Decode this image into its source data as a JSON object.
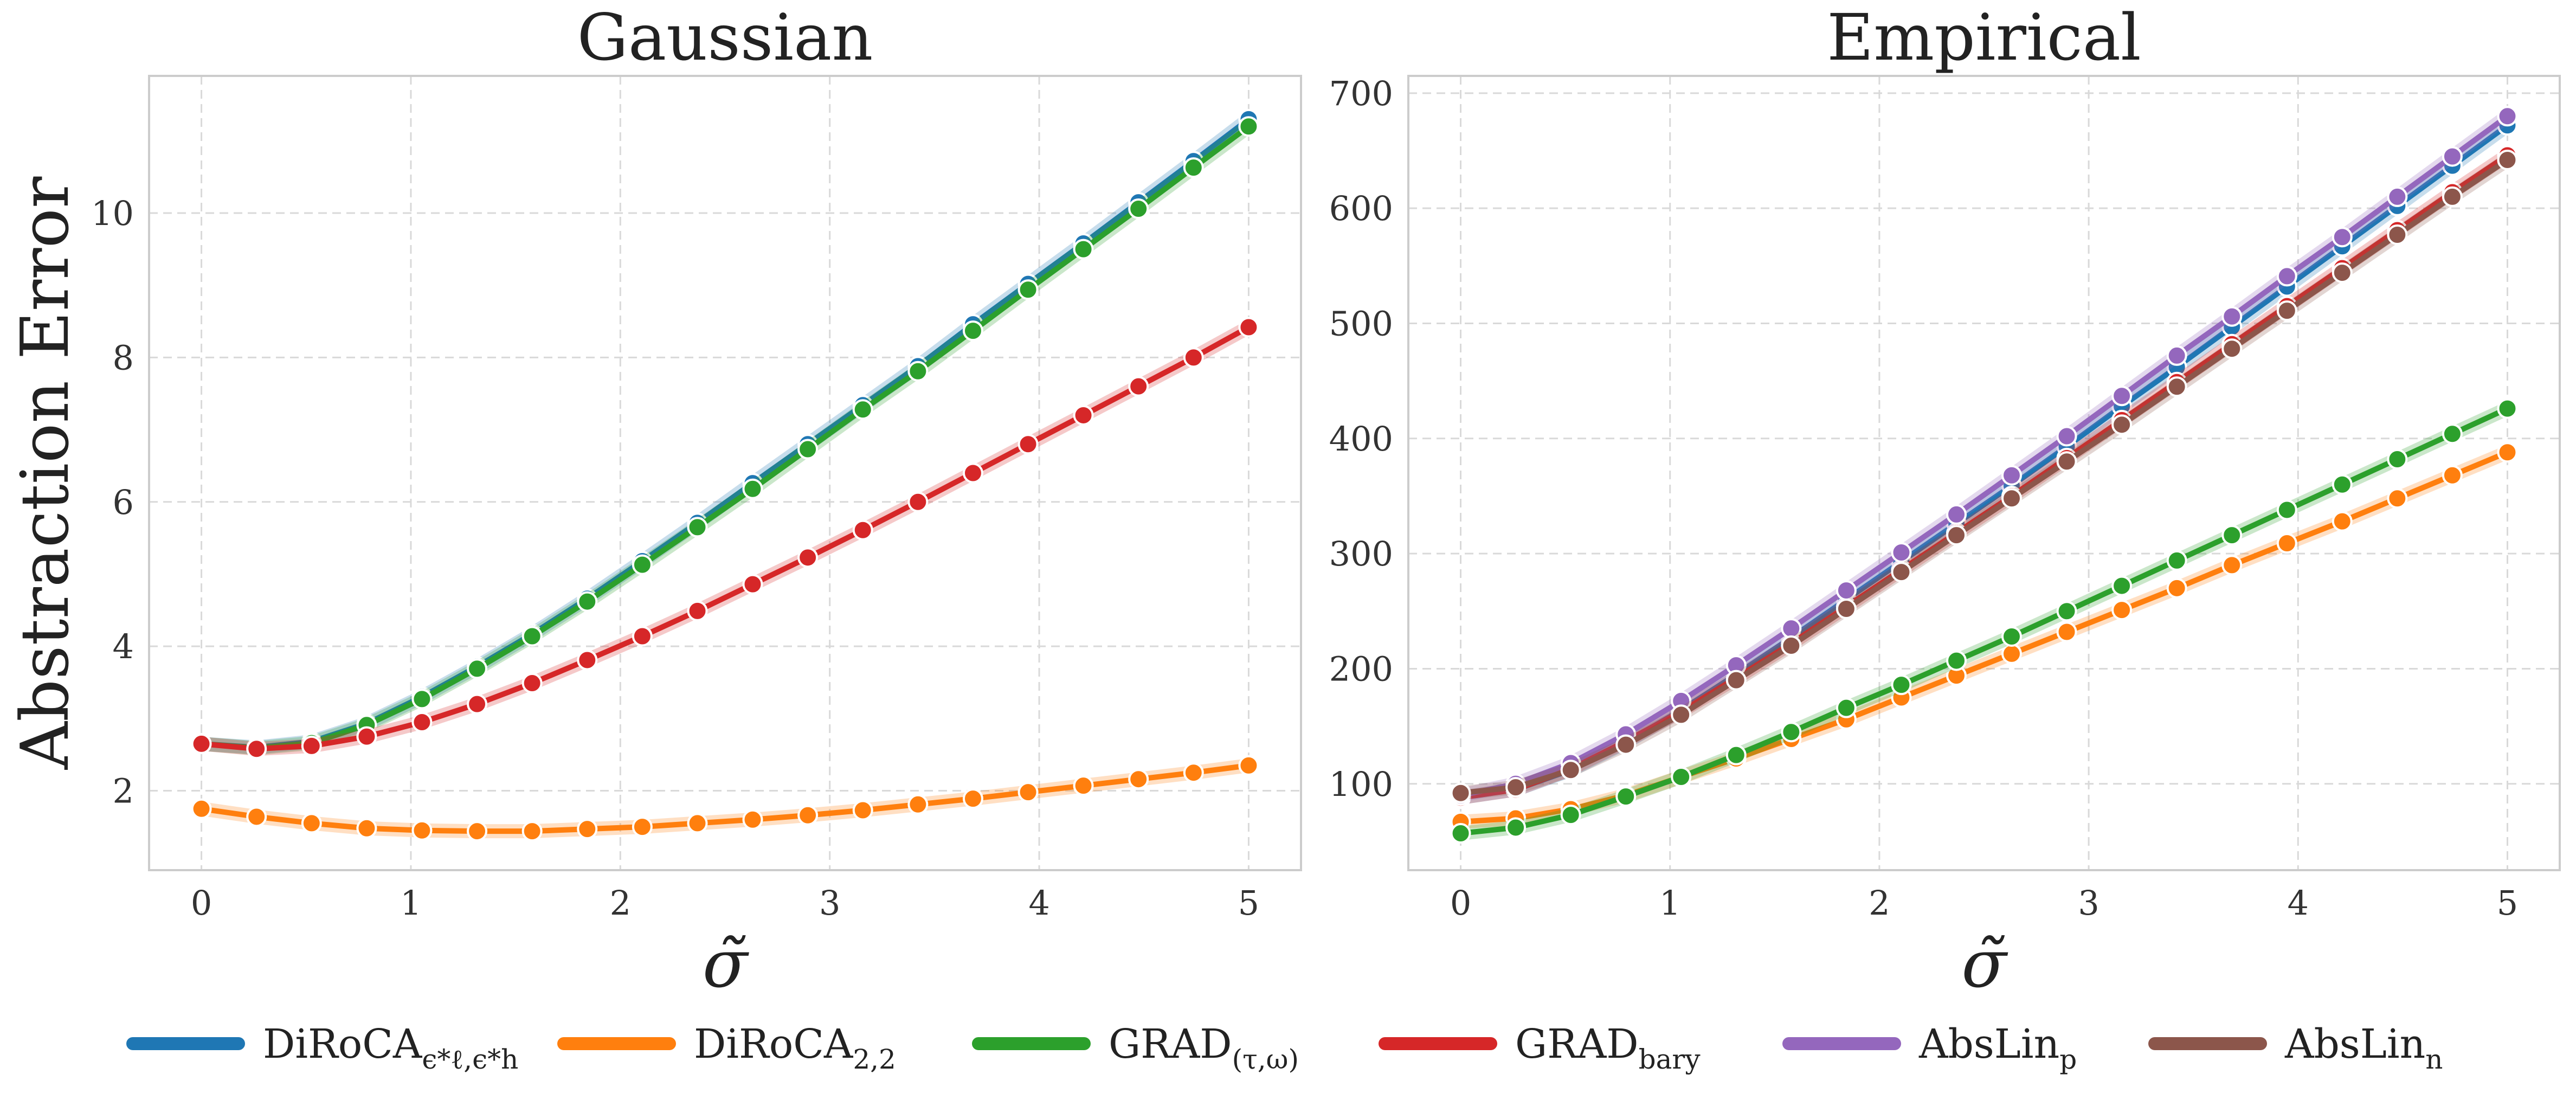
{
  "chart_data": [
    {
      "type": "line",
      "title": "Gaussian",
      "xlabel": "σ̃",
      "ylabel": "Abstraction Error",
      "xlim": [
        -0.25,
        5.25
      ],
      "ylim": [
        0.9,
        11.9
      ],
      "xticks": [
        0,
        1,
        2,
        3,
        4,
        5
      ],
      "yticks": [
        2,
        4,
        6,
        8,
        10
      ],
      "grid": true,
      "x": [
        0,
        0.263,
        0.526,
        0.789,
        1.053,
        1.316,
        1.579,
        1.842,
        2.105,
        2.368,
        2.632,
        2.895,
        3.158,
        3.421,
        3.684,
        3.947,
        4.211,
        4.474,
        4.737,
        5.0
      ],
      "series": [
        {
          "name": "DiRoCA_eps",
          "color": "#1f77b4",
          "values": [
            2.65,
            2.6,
            2.68,
            2.93,
            3.3,
            3.72,
            4.17,
            4.66,
            5.18,
            5.71,
            6.26,
            6.8,
            7.34,
            7.88,
            8.46,
            9.02,
            9.58,
            10.15,
            10.72,
            11.3
          ]
        },
        {
          "name": "DiRoCA_22",
          "color": "#ff7f0e",
          "values": [
            1.75,
            1.64,
            1.55,
            1.48,
            1.45,
            1.44,
            1.44,
            1.47,
            1.5,
            1.55,
            1.6,
            1.66,
            1.73,
            1.81,
            1.89,
            1.98,
            2.07,
            2.16,
            2.25,
            2.35
          ]
        },
        {
          "name": "GRAD_tau_omega",
          "color": "#2ca02c",
          "values": [
            2.65,
            2.59,
            2.66,
            2.91,
            3.27,
            3.69,
            4.14,
            4.62,
            5.13,
            5.65,
            6.18,
            6.73,
            7.28,
            7.81,
            8.37,
            8.94,
            9.5,
            10.06,
            10.63,
            11.2
          ]
        },
        {
          "name": "GRAD_bary",
          "color": "#d62728",
          "values": [
            2.65,
            2.58,
            2.62,
            2.75,
            2.95,
            3.2,
            3.49,
            3.81,
            4.14,
            4.49,
            4.86,
            5.23,
            5.61,
            6.0,
            6.4,
            6.8,
            7.2,
            7.6,
            8.0,
            8.42
          ]
        }
      ]
    },
    {
      "type": "line",
      "title": "Empirical",
      "xlabel": "σ̃",
      "ylabel": "",
      "xlim": [
        -0.25,
        5.25
      ],
      "ylim": [
        25,
        715
      ],
      "xticks": [
        0,
        1,
        2,
        3,
        4,
        5
      ],
      "yticks": [
        100,
        200,
        300,
        400,
        500,
        600,
        700
      ],
      "grid": true,
      "x": [
        0,
        0.263,
        0.526,
        0.789,
        1.053,
        1.316,
        1.579,
        1.842,
        2.105,
        2.368,
        2.632,
        2.895,
        3.158,
        3.421,
        3.684,
        3.947,
        4.211,
        4.474,
        4.737,
        5.0
      ],
      "series": [
        {
          "name": "DiRoCA_eps",
          "color": "#1f77b4",
          "values": [
            88,
            95,
            112,
            136,
            164,
            195,
            227,
            260,
            293,
            326,
            359,
            393,
            428,
            462,
            497,
            532,
            567,
            602,
            637,
            672
          ]
        },
        {
          "name": "DiRoCA_22",
          "color": "#ff7f0e",
          "values": [
            67,
            70,
            78,
            90,
            106,
            122,
            139,
            156,
            175,
            194,
            213,
            232,
            251,
            270,
            290,
            309,
            328,
            348,
            368,
            388
          ]
        },
        {
          "name": "GRAD_tau_omega",
          "color": "#2ca02c",
          "values": [
            57,
            62,
            73,
            89,
            106,
            125,
            145,
            166,
            186,
            207,
            228,
            250,
            272,
            294,
            316,
            338,
            360,
            382,
            404,
            426
          ]
        },
        {
          "name": "GRAD_bary",
          "color": "#d62728",
          "values": [
            88,
            95,
            113,
            137,
            163,
            192,
            222,
            254,
            286,
            318,
            350,
            383,
            416,
            449,
            482,
            515,
            548,
            581,
            614,
            646
          ]
        },
        {
          "name": "AbsLin_p",
          "color": "#9467bd",
          "values": [
            90,
            100,
            118,
            143,
            172,
            203,
            235,
            268,
            301,
            334,
            368,
            402,
            437,
            472,
            506,
            541,
            575,
            610,
            645,
            680
          ]
        },
        {
          "name": "AbsLin_n",
          "color": "#8c564b",
          "values": [
            92,
            97,
            112,
            134,
            160,
            190,
            220,
            252,
            284,
            316,
            348,
            380,
            412,
            445,
            478,
            511,
            544,
            577,
            610,
            642
          ]
        }
      ]
    }
  ],
  "legend": {
    "placement": "bottom",
    "items": [
      {
        "color": "#1f77b4",
        "label": "DiRoCA",
        "sub": "ϵ*ℓ,ϵ*h"
      },
      {
        "color": "#ff7f0e",
        "label": "DiRoCA",
        "sub": "2,2"
      },
      {
        "color": "#2ca02c",
        "label": "GRAD",
        "sub": "(τ,ω)"
      },
      {
        "color": "#d62728",
        "label": "GRAD",
        "sub": "bary"
      },
      {
        "color": "#9467bd",
        "label": "AbsLin",
        "sub": "p"
      },
      {
        "color": "#8c564b",
        "label": "AbsLin",
        "sub": "n"
      }
    ]
  }
}
